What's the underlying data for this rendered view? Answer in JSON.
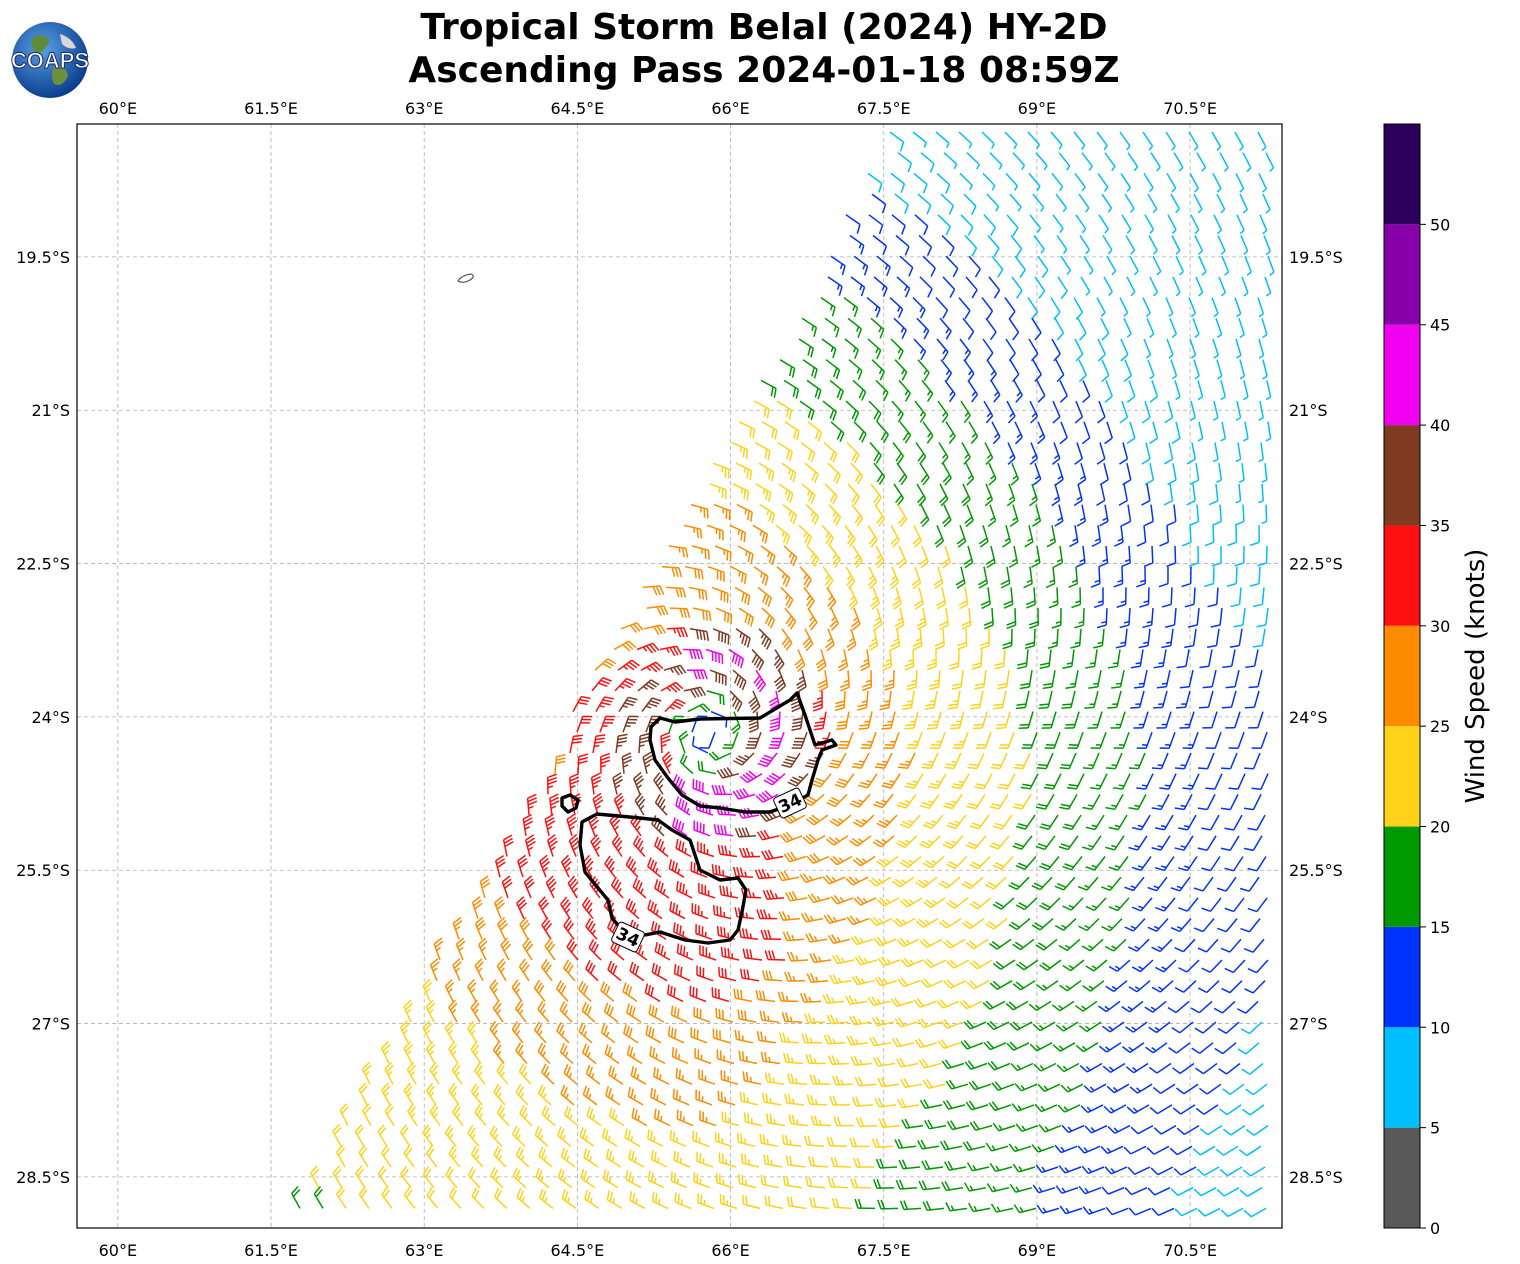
{
  "title": {
    "line1": "Tropical Storm Belal (2024) HY-2D",
    "line2": "Ascending Pass 2024-01-18 08:59Z"
  },
  "logo": {
    "text": "COAPS",
    "icon": "globe-icon"
  },
  "map": {
    "lon_ticks": [
      "60°E",
      "61.5°E",
      "63°E",
      "64.5°E",
      "66°E",
      "67.5°E",
      "69°E",
      "70.5°E"
    ],
    "lat_ticks": [
      "19.5°S",
      "21°S",
      "22.5°S",
      "24°S",
      "25.5°S",
      "27°S",
      "28.5°S"
    ],
    "lon_range": [
      59.6,
      71.4
    ],
    "lat_range": [
      -18.2,
      -29.0
    ],
    "storm_center": {
      "lon": 65.8,
      "lat": -24.15
    },
    "contour_labels": [
      "34",
      "34"
    ],
    "gridlines": true
  },
  "colorbar": {
    "label": "Wind Speed (knots)",
    "ticks": [
      "0",
      "5",
      "10",
      "15",
      "20",
      "25",
      "30",
      "35",
      "40",
      "45",
      "50"
    ],
    "bins": [
      {
        "range": [
          0,
          5
        ],
        "color": "#595959"
      },
      {
        "range": [
          5,
          10
        ],
        "color": "#00bfff"
      },
      {
        "range": [
          10,
          15
        ],
        "color": "#0033ff"
      },
      {
        "range": [
          15,
          20
        ],
        "color": "#009900"
      },
      {
        "range": [
          20,
          25
        ],
        "color": "#ffd21a"
      },
      {
        "range": [
          25,
          30
        ],
        "color": "#ff8c00"
      },
      {
        "range": [
          30,
          35
        ],
        "color": "#ff1010"
      },
      {
        "range": [
          35,
          40
        ],
        "color": "#7f3a22"
      },
      {
        "range": [
          40,
          45
        ],
        "color": "#f200f2"
      },
      {
        "range": [
          45,
          50
        ],
        "color": "#8800aa"
      },
      {
        "range": [
          50,
          55
        ],
        "color": "#2e005e"
      }
    ]
  }
}
